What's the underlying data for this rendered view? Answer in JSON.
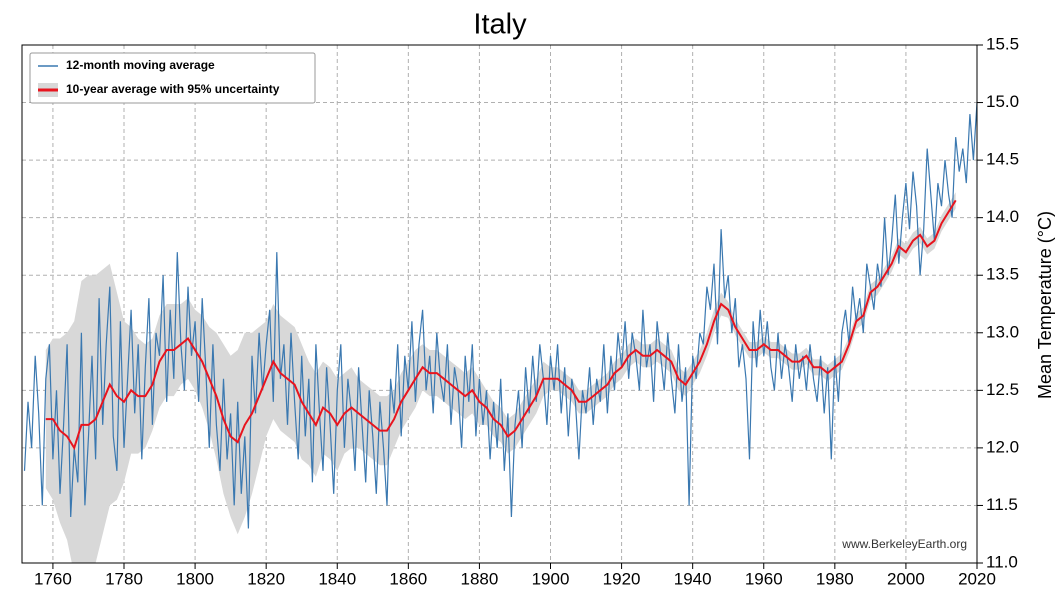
{
  "chart_data": {
    "type": "line",
    "title": "Italy",
    "y_axis_label": "Mean Temperature (°C)",
    "watermark": "www.BerkeleyEarth.org",
    "legend": "upper left",
    "grid": true,
    "xlim": [
      1751.3,
      2020
    ],
    "ylim": [
      11.0,
      15.5
    ],
    "xticks": [
      1760,
      1780,
      1800,
      1820,
      1840,
      1860,
      1880,
      1900,
      1920,
      1940,
      1960,
      1980,
      2000,
      2020
    ],
    "yticks": [
      {
        "value": 11,
        "label": "11.0"
      },
      11.5,
      {
        "value": 12,
        "label": "12.0"
      },
      12.5,
      {
        "value": 13,
        "label": "13.0"
      },
      13.5,
      {
        "value": 14,
        "label": "14.0"
      },
      14.5,
      {
        "value": 15,
        "label": "15.0"
      },
      15.5
    ],
    "series": [
      {
        "name": "12-month moving average",
        "color": "#3a78b0",
        "band_color": null,
        "x": [
          1752,
          1753,
          1754,
          1755,
          1756,
          1757,
          1758,
          1759,
          1760,
          1761,
          1762,
          1763,
          1764,
          1765,
          1766,
          1767,
          1768,
          1769,
          1770,
          1771,
          1772,
          1773,
          1774,
          1775,
          1776,
          1777,
          1778,
          1779,
          1780,
          1781,
          1782,
          1783,
          1784,
          1785,
          1786,
          1787,
          1788,
          1789,
          1790,
          1791,
          1792,
          1793,
          1794,
          1795,
          1796,
          1797,
          1798,
          1799,
          1800,
          1801,
          1802,
          1803,
          1804,
          1805,
          1806,
          1807,
          1808,
          1809,
          1810,
          1811,
          1812,
          1813,
          1814,
          1815,
          1816,
          1817,
          1818,
          1819,
          1820,
          1821,
          1822,
          1823,
          1824,
          1825,
          1826,
          1827,
          1828,
          1829,
          1830,
          1831,
          1832,
          1833,
          1834,
          1835,
          1836,
          1837,
          1838,
          1839,
          1840,
          1841,
          1842,
          1843,
          1844,
          1845,
          1846,
          1847,
          1848,
          1849,
          1850,
          1851,
          1852,
          1853,
          1854,
          1855,
          1856,
          1857,
          1858,
          1859,
          1860,
          1861,
          1862,
          1863,
          1864,
          1865,
          1866,
          1867,
          1868,
          1869,
          1870,
          1871,
          1872,
          1873,
          1874,
          1875,
          1876,
          1877,
          1878,
          1879,
          1880,
          1881,
          1882,
          1883,
          1884,
          1885,
          1886,
          1887,
          1888,
          1889,
          1890,
          1891,
          1892,
          1893,
          1894,
          1895,
          1896,
          1897,
          1898,
          1899,
          1900,
          1901,
          1902,
          1903,
          1904,
          1905,
          1906,
          1907,
          1908,
          1909,
          1910,
          1911,
          1912,
          1913,
          1914,
          1915,
          1916,
          1917,
          1918,
          1919,
          1920,
          1921,
          1922,
          1923,
          1924,
          1925,
          1926,
          1927,
          1928,
          1929,
          1930,
          1931,
          1932,
          1933,
          1934,
          1935,
          1936,
          1937,
          1938,
          1939,
          1940,
          1941,
          1942,
          1943,
          1944,
          1945,
          1946,
          1947,
          1948,
          1949,
          1950,
          1951,
          1952,
          1953,
          1954,
          1955,
          1956,
          1957,
          1958,
          1959,
          1960,
          1961,
          1962,
          1963,
          1964,
          1965,
          1966,
          1967,
          1968,
          1969,
          1970,
          1971,
          1972,
          1973,
          1974,
          1975,
          1976,
          1977,
          1978,
          1979,
          1980,
          1981,
          1982,
          1983,
          1984,
          1985,
          1986,
          1987,
          1988,
          1989,
          1990,
          1991,
          1992,
          1993,
          1994,
          1995,
          1996,
          1997,
          1998,
          1999,
          2000,
          2001,
          2002,
          2003,
          2004,
          2005,
          2006,
          2007,
          2008,
          2009,
          2010,
          2011,
          2012,
          2013,
          2014,
          2015,
          2016,
          2017,
          2018,
          2019,
          2020
        ],
        "values": [
          11.8,
          12.4,
          12.0,
          12.8,
          12.3,
          11.5,
          12.6,
          12.9,
          11.9,
          12.5,
          11.6,
          12.2,
          12.9,
          11.4,
          12.0,
          11.7,
          13.0,
          11.5,
          12.1,
          12.8,
          11.9,
          13.3,
          12.2,
          12.9,
          13.4,
          12.1,
          11.8,
          13.1,
          12.0,
          12.6,
          13.2,
          12.3,
          12.9,
          11.9,
          12.7,
          13.3,
          12.2,
          13.0,
          12.8,
          13.5,
          12.4,
          13.2,
          12.6,
          13.7,
          12.9,
          12.5,
          13.4,
          12.8,
          13.1,
          12.4,
          13.3,
          12.7,
          12.0,
          12.9,
          12.2,
          11.8,
          12.6,
          11.9,
          12.3,
          11.5,
          12.4,
          11.6,
          12.1,
          11.3,
          12.8,
          12.3,
          13.0,
          12.5,
          12.9,
          13.2,
          12.4,
          13.7,
          12.6,
          12.9,
          12.2,
          13.0,
          12.4,
          11.9,
          12.8,
          12.1,
          12.6,
          11.7,
          12.9,
          12.3,
          11.8,
          12.7,
          12.2,
          11.6,
          12.5,
          12.9,
          12.0,
          12.6,
          12.3,
          11.8,
          12.7,
          12.2,
          11.7,
          12.5,
          12.1,
          11.6,
          12.4,
          12.0,
          11.5,
          12.6,
          12.3,
          12.9,
          12.1,
          12.8,
          12.5,
          13.1,
          12.4,
          12.9,
          13.2,
          12.5,
          12.8,
          12.3,
          13.0,
          12.6,
          12.4,
          12.9,
          12.2,
          12.7,
          12.5,
          12.0,
          12.8,
          12.4,
          12.9,
          12.1,
          12.6,
          12.2,
          12.5,
          11.9,
          12.4,
          12.0,
          12.6,
          11.8,
          12.3,
          11.4,
          12.2,
          12.5,
          12.0,
          12.7,
          12.3,
          12.8,
          12.4,
          12.9,
          12.6,
          12.2,
          12.8,
          12.5,
          12.9,
          12.3,
          12.7,
          12.1,
          12.6,
          12.4,
          11.9,
          12.5,
          12.3,
          12.7,
          12.2,
          12.6,
          12.4,
          12.9,
          12.3,
          12.8,
          12.5,
          13.0,
          12.7,
          13.1,
          12.6,
          13.0,
          12.8,
          12.5,
          13.2,
          12.7,
          12.9,
          12.4,
          13.1,
          12.8,
          12.5,
          13.0,
          12.6,
          12.3,
          12.9,
          12.4,
          12.7,
          11.5,
          12.8,
          12.6,
          13.0,
          12.9,
          13.4,
          13.2,
          13.6,
          12.9,
          13.9,
          13.3,
          13.5,
          13.0,
          13.3,
          12.7,
          12.9,
          12.6,
          11.9,
          13.1,
          12.7,
          13.2,
          12.8,
          13.1,
          12.7,
          12.5,
          13.0,
          12.6,
          12.9,
          12.7,
          12.4,
          12.9,
          12.6,
          12.8,
          12.5,
          12.9,
          12.6,
          12.4,
          12.8,
          12.3,
          12.7,
          11.9,
          12.8,
          12.4,
          13.0,
          13.2,
          12.9,
          13.4,
          13.1,
          13.3,
          13.0,
          13.6,
          13.4,
          13.2,
          13.6,
          13.4,
          14.0,
          13.5,
          13.8,
          14.2,
          13.6,
          14.0,
          14.3,
          13.9,
          14.4,
          14.1,
          13.5,
          13.9,
          14.6,
          14.2,
          13.8,
          14.3,
          14.1,
          14.5,
          14.2,
          14.0,
          14.7,
          14.4,
          14.6,
          14.3,
          14.9,
          14.5,
          15.0
        ]
      },
      {
        "name": "10-year average with 95% uncertainty",
        "color": "#e8141e",
        "band_color": "#d8d8d8",
        "x": [
          1758,
          1760,
          1762,
          1764,
          1766,
          1768,
          1770,
          1772,
          1774,
          1776,
          1778,
          1780,
          1782,
          1784,
          1786,
          1788,
          1790,
          1792,
          1794,
          1796,
          1798,
          1800,
          1802,
          1804,
          1806,
          1808,
          1810,
          1812,
          1814,
          1816,
          1818,
          1820,
          1822,
          1824,
          1826,
          1828,
          1830,
          1832,
          1834,
          1836,
          1838,
          1840,
          1842,
          1844,
          1846,
          1848,
          1850,
          1852,
          1854,
          1856,
          1858,
          1860,
          1862,
          1864,
          1866,
          1868,
          1870,
          1872,
          1874,
          1876,
          1878,
          1880,
          1882,
          1884,
          1886,
          1888,
          1890,
          1892,
          1894,
          1896,
          1898,
          1900,
          1902,
          1904,
          1906,
          1908,
          1910,
          1912,
          1914,
          1916,
          1918,
          1920,
          1922,
          1924,
          1926,
          1928,
          1930,
          1932,
          1934,
          1936,
          1938,
          1940,
          1942,
          1944,
          1946,
          1948,
          1950,
          1952,
          1954,
          1956,
          1958,
          1960,
          1962,
          1964,
          1966,
          1968,
          1970,
          1972,
          1974,
          1976,
          1978,
          1980,
          1982,
          1984,
          1986,
          1988,
          1990,
          1992,
          1994,
          1996,
          1998,
          2000,
          2002,
          2004,
          2006,
          2008,
          2010,
          2012,
          2014
        ],
        "values": [
          12.25,
          12.25,
          12.15,
          12.1,
          12.0,
          12.2,
          12.2,
          12.25,
          12.4,
          12.55,
          12.45,
          12.4,
          12.5,
          12.45,
          12.45,
          12.55,
          12.75,
          12.85,
          12.85,
          12.9,
          12.95,
          12.85,
          12.75,
          12.6,
          12.45,
          12.25,
          12.1,
          12.05,
          12.2,
          12.3,
          12.45,
          12.6,
          12.75,
          12.65,
          12.6,
          12.55,
          12.4,
          12.3,
          12.2,
          12.35,
          12.3,
          12.2,
          12.3,
          12.35,
          12.3,
          12.25,
          12.2,
          12.15,
          12.15,
          12.25,
          12.4,
          12.5,
          12.6,
          12.7,
          12.65,
          12.65,
          12.6,
          12.55,
          12.5,
          12.45,
          12.5,
          12.4,
          12.35,
          12.25,
          12.2,
          12.1,
          12.15,
          12.25,
          12.35,
          12.45,
          12.6,
          12.6,
          12.6,
          12.55,
          12.5,
          12.4,
          12.4,
          12.45,
          12.5,
          12.55,
          12.65,
          12.7,
          12.8,
          12.85,
          12.8,
          12.8,
          12.85,
          12.8,
          12.75,
          12.6,
          12.55,
          12.65,
          12.75,
          12.9,
          13.1,
          13.25,
          13.2,
          13.05,
          12.95,
          12.85,
          12.85,
          12.9,
          12.85,
          12.85,
          12.8,
          12.75,
          12.75,
          12.8,
          12.7,
          12.7,
          12.65,
          12.7,
          12.75,
          12.9,
          13.1,
          13.15,
          13.35,
          13.4,
          13.5,
          13.6,
          13.75,
          13.7,
          13.8,
          13.85,
          13.75,
          13.8,
          13.95,
          14.05,
          14.15
        ],
        "lower": [
          11.65,
          11.55,
          11.35,
          11.2,
          10.9,
          10.95,
          10.9,
          11.0,
          11.25,
          11.5,
          11.55,
          11.7,
          11.95,
          11.95,
          12.0,
          12.15,
          12.35,
          12.45,
          12.45,
          12.55,
          12.6,
          12.5,
          12.35,
          12.15,
          11.9,
          11.6,
          11.4,
          11.25,
          11.4,
          11.6,
          11.85,
          12.1,
          12.25,
          12.15,
          12.1,
          12.05,
          11.9,
          11.85,
          11.75,
          11.95,
          11.9,
          11.8,
          11.95,
          12.0,
          12.0,
          11.95,
          11.9,
          11.85,
          11.85,
          12.0,
          12.15,
          12.25,
          12.35,
          12.5,
          12.45,
          12.45,
          12.4,
          12.35,
          12.3,
          12.25,
          12.3,
          12.2,
          12.2,
          12.1,
          12.05,
          11.95,
          12.0,
          12.1,
          12.2,
          12.3,
          12.45,
          12.5,
          12.5,
          12.45,
          12.4,
          12.3,
          12.3,
          12.35,
          12.4,
          12.45,
          12.55,
          12.6,
          12.7,
          12.75,
          12.7,
          12.7,
          12.75,
          12.7,
          12.65,
          12.5,
          12.45,
          12.55,
          12.65,
          12.8,
          13.0,
          13.15,
          13.13,
          12.98,
          12.88,
          12.78,
          12.78,
          12.83,
          12.78,
          12.78,
          12.73,
          12.68,
          12.68,
          12.73,
          12.63,
          12.63,
          12.58,
          12.63,
          12.68,
          12.83,
          13.03,
          13.08,
          13.28,
          13.33,
          13.43,
          13.53,
          13.68,
          13.63,
          13.73,
          13.78,
          13.68,
          13.73,
          13.88,
          13.98,
          14.08
        ],
        "upper": [
          12.85,
          12.95,
          12.95,
          13.0,
          13.1,
          13.45,
          13.5,
          13.5,
          13.55,
          13.6,
          13.35,
          13.1,
          13.05,
          12.95,
          12.9,
          12.95,
          13.15,
          13.25,
          13.25,
          13.25,
          13.3,
          13.2,
          13.15,
          13.05,
          13.0,
          12.9,
          12.8,
          12.85,
          13.0,
          13.0,
          13.05,
          13.1,
          13.25,
          13.15,
          13.1,
          13.05,
          12.9,
          12.75,
          12.65,
          12.75,
          12.7,
          12.6,
          12.65,
          12.7,
          12.6,
          12.55,
          12.5,
          12.45,
          12.45,
          12.5,
          12.65,
          12.75,
          12.85,
          12.9,
          12.85,
          12.85,
          12.8,
          12.75,
          12.7,
          12.65,
          12.7,
          12.6,
          12.5,
          12.4,
          12.35,
          12.25,
          12.3,
          12.4,
          12.5,
          12.6,
          12.75,
          12.7,
          12.7,
          12.65,
          12.6,
          12.5,
          12.5,
          12.55,
          12.6,
          12.65,
          12.75,
          12.8,
          12.9,
          12.95,
          12.9,
          12.9,
          12.95,
          12.9,
          12.85,
          12.7,
          12.65,
          12.75,
          12.85,
          13.0,
          13.2,
          13.35,
          13.27,
          13.12,
          13.02,
          12.92,
          12.92,
          12.97,
          12.92,
          12.92,
          12.87,
          12.82,
          12.82,
          12.87,
          12.77,
          12.77,
          12.72,
          12.77,
          12.82,
          12.97,
          13.17,
          13.22,
          13.42,
          13.47,
          13.57,
          13.67,
          13.82,
          13.77,
          13.87,
          13.92,
          13.82,
          13.87,
          14.02,
          14.12,
          14.22
        ]
      }
    ]
  }
}
